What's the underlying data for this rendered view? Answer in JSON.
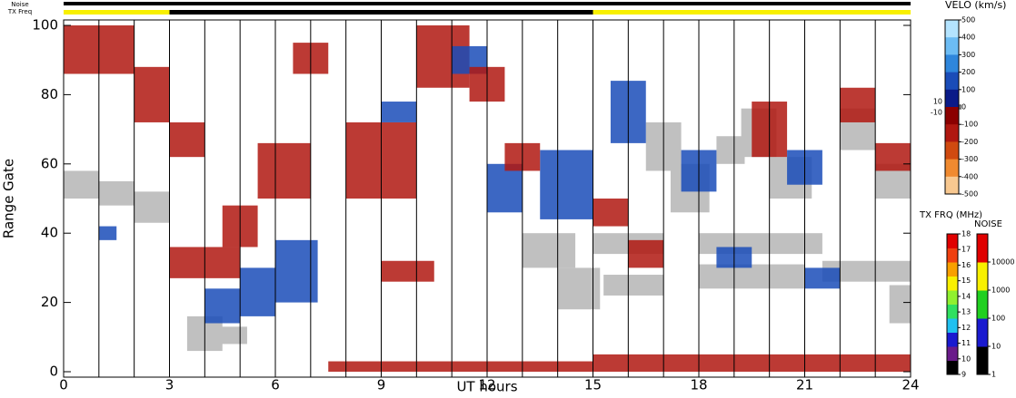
{
  "chart_data": {
    "type": "range-time",
    "xlabel": "UT hours",
    "ylabel": "Range Gate",
    "xlim": [
      0,
      24
    ],
    "ylim": [
      0,
      100
    ],
    "xticks": [
      0,
      3,
      6,
      9,
      12,
      15,
      18,
      21,
      24
    ],
    "yticks": [
      0,
      20,
      40,
      60,
      80,
      100
    ],
    "xgrid": [
      1,
      2,
      3,
      4,
      5,
      6,
      7,
      8,
      9,
      10,
      11,
      12,
      13,
      14,
      15,
      16,
      17,
      18,
      19,
      20,
      21,
      22,
      23
    ],
    "ground_color": "#c0c0c0",
    "ground_scatter": [
      {
        "t0": 0,
        "t1": 1,
        "g0": 50,
        "g1": 58
      },
      {
        "t0": 1,
        "t1": 2,
        "g0": 48,
        "g1": 55
      },
      {
        "t0": 2,
        "t1": 3,
        "g0": 43,
        "g1": 52
      },
      {
        "t0": 3.5,
        "t1": 4.5,
        "g0": 6,
        "g1": 16
      },
      {
        "t0": 4.3,
        "t1": 5.2,
        "g0": 8,
        "g1": 13
      },
      {
        "t0": 13,
        "t1": 14.5,
        "g0": 30,
        "g1": 40
      },
      {
        "t0": 14,
        "t1": 15.2,
        "g0": 18,
        "g1": 30
      },
      {
        "t0": 15,
        "t1": 17,
        "g0": 34,
        "g1": 40
      },
      {
        "t0": 15.3,
        "t1": 17,
        "g0": 22,
        "g1": 28
      },
      {
        "t0": 16.5,
        "t1": 17.5,
        "g0": 58,
        "g1": 72
      },
      {
        "t0": 17.2,
        "t1": 18.3,
        "g0": 46,
        "g1": 60
      },
      {
        "t0": 18,
        "t1": 21,
        "g0": 24,
        "g1": 31
      },
      {
        "t0": 18,
        "t1": 21.5,
        "g0": 34,
        "g1": 40
      },
      {
        "t0": 19.2,
        "t1": 20.2,
        "g0": 62,
        "g1": 76
      },
      {
        "t0": 20,
        "t1": 21.2,
        "g0": 50,
        "g1": 62
      },
      {
        "t0": 21.5,
        "t1": 24,
        "g0": 26,
        "g1": 32
      },
      {
        "t0": 22,
        "t1": 23,
        "g0": 64,
        "g1": 76
      },
      {
        "t0": 23,
        "t1": 24,
        "g0": 50,
        "g1": 60
      },
      {
        "t0": 23.4,
        "t1": 24,
        "g0": 14,
        "g1": 25
      },
      {
        "t0": 18.5,
        "t1": 19.3,
        "g0": 60,
        "g1": 68
      }
    ],
    "echoes": [
      {
        "t0": 0,
        "t1": 2,
        "g0": 86,
        "g1": 100,
        "v": -150
      },
      {
        "t0": 2,
        "t1": 3,
        "g0": 72,
        "g1": 88,
        "v": -150
      },
      {
        "t0": 3,
        "t1": 4,
        "g0": 62,
        "g1": 72,
        "v": -150
      },
      {
        "t0": 3,
        "t1": 5,
        "g0": 27,
        "g1": 36,
        "v": -150
      },
      {
        "t0": 4.5,
        "t1": 5.5,
        "g0": 36,
        "g1": 48,
        "v": -150
      },
      {
        "t0": 5.5,
        "t1": 7,
        "g0": 50,
        "g1": 66,
        "v": -150
      },
      {
        "t0": 4,
        "t1": 5,
        "g0": 14,
        "g1": 24,
        "v": 150
      },
      {
        "t0": 5,
        "t1": 6,
        "g0": 16,
        "g1": 30,
        "v": 150
      },
      {
        "t0": 6,
        "t1": 7.2,
        "g0": 20,
        "g1": 38,
        "v": 150
      },
      {
        "t0": 6.5,
        "t1": 7.5,
        "g0": 86,
        "g1": 95,
        "v": -150
      },
      {
        "t0": 8,
        "t1": 10,
        "g0": 50,
        "g1": 72,
        "v": -150
      },
      {
        "t0": 9,
        "t1": 10,
        "g0": 72,
        "g1": 78,
        "v": 150
      },
      {
        "t0": 10,
        "t1": 11.5,
        "g0": 82,
        "g1": 100,
        "v": -150
      },
      {
        "t0": 11,
        "t1": 12,
        "g0": 86,
        "g1": 94,
        "v": 150
      },
      {
        "t0": 11.5,
        "t1": 12.5,
        "g0": 78,
        "g1": 88,
        "v": -150
      },
      {
        "t0": 12,
        "t1": 13,
        "g0": 46,
        "g1": 60,
        "v": 150
      },
      {
        "t0": 13.5,
        "t1": 15,
        "g0": 44,
        "g1": 64,
        "v": 150
      },
      {
        "t0": 12.5,
        "t1": 13.5,
        "g0": 58,
        "g1": 66,
        "v": -150
      },
      {
        "t0": 7.5,
        "t1": 15,
        "g0": 0,
        "g1": 3,
        "v": -150
      },
      {
        "t0": 15,
        "t1": 24,
        "g0": 0,
        "g1": 5,
        "v": -150
      },
      {
        "t0": 15.5,
        "t1": 16.5,
        "g0": 66,
        "g1": 84,
        "v": 150
      },
      {
        "t0": 16,
        "t1": 17,
        "g0": 30,
        "g1": 38,
        "v": -150
      },
      {
        "t0": 17.5,
        "t1": 18.5,
        "g0": 52,
        "g1": 64,
        "v": 150
      },
      {
        "t0": 18.5,
        "t1": 19.5,
        "g0": 30,
        "g1": 36,
        "v": 150
      },
      {
        "t0": 19.5,
        "t1": 20.5,
        "g0": 62,
        "g1": 78,
        "v": -150
      },
      {
        "t0": 20.5,
        "t1": 21.5,
        "g0": 54,
        "g1": 64,
        "v": 150
      },
      {
        "t0": 21,
        "t1": 22,
        "g0": 24,
        "g1": 30,
        "v": 150
      },
      {
        "t0": 22,
        "t1": 23,
        "g0": 72,
        "g1": 82,
        "v": -150
      },
      {
        "t0": 23,
        "t1": 24,
        "g0": 58,
        "g1": 66,
        "v": -150
      },
      {
        "t0": 15,
        "t1": 16,
        "g0": 42,
        "g1": 50,
        "v": -150
      },
      {
        "t0": 9,
        "t1": 10.5,
        "g0": 26,
        "g1": 32,
        "v": -150
      },
      {
        "t0": 1,
        "t1": 1.5,
        "g0": 38,
        "g1": 42,
        "v": 150
      }
    ],
    "noise_label": "Noise",
    "txfreq_label": "TX Freq",
    "noise_bar": [
      {
        "t0": 0,
        "t1": 24,
        "v": 1
      }
    ],
    "txfreq_bar": [
      {
        "t0": 0,
        "t1": 3,
        "v": 14.5
      },
      {
        "t0": 3,
        "t1": 15,
        "v": 9.5
      },
      {
        "t0": 15,
        "t1": 24,
        "v": 14.5
      }
    ],
    "velo_title": "VELO (km/s)",
    "velo_lim": [
      -500,
      500
    ],
    "velo_ticks": [
      500,
      400,
      300,
      200,
      100,
      10,
      0,
      -10,
      -100,
      -200,
      -300,
      -400,
      -500
    ],
    "velo_colors": [
      "#b4e4ff",
      "#6cbcf4",
      "#2e86dc",
      "#1a4cb8",
      "#0a1a88",
      "#8b0000",
      "#b01810",
      "#d04a10",
      "#f08a30",
      "#f8c890"
    ],
    "freq_title": "TX FRQ (MHz)",
    "freq_lim": [
      9,
      18
    ],
    "freq_ticks": [
      9,
      10,
      11,
      12,
      13,
      14,
      15,
      16,
      17,
      18
    ],
    "freq_colors": [
      "#000000",
      "#6a1b8a",
      "#1a1ad0",
      "#20c0f0",
      "#30e060",
      "#90f030",
      "#f8f000",
      "#f8a000",
      "#f04010",
      "#e00000"
    ],
    "noise_title": "NOISE",
    "noise_lim": [
      1,
      100000
    ],
    "noise_ticks": [
      1,
      10,
      100,
      1000,
      10000
    ],
    "noise_colors": [
      "#000000",
      "#1a1ad0",
      "#20d020",
      "#f8f000",
      "#e00000"
    ]
  }
}
